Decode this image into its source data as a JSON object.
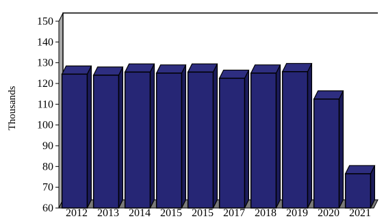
{
  "chart_data": {
    "type": "bar",
    "categories": [
      "2012",
      "2013",
      "2014",
      "2015",
      "2015",
      "2017",
      "2018",
      "2019",
      "2020",
      "2021"
    ],
    "values": [
      124.5,
      124.0,
      125.5,
      125.0,
      125.5,
      122.5,
      125.0,
      125.7,
      112.5,
      76.5
    ],
    "ylabel": "Thousands",
    "ylim": [
      60,
      150
    ],
    "yticks": [
      60,
      70,
      80,
      90,
      100,
      110,
      120,
      130,
      140,
      150
    ],
    "grid": false,
    "style": "3d",
    "colors": {
      "bar_front": "#262675",
      "bar_top": "#2e2e80",
      "bar_side": "#1b1b5a",
      "outline": "#000000",
      "left_wall": "#a9a9a9",
      "floor": "#7a7a7a"
    }
  }
}
